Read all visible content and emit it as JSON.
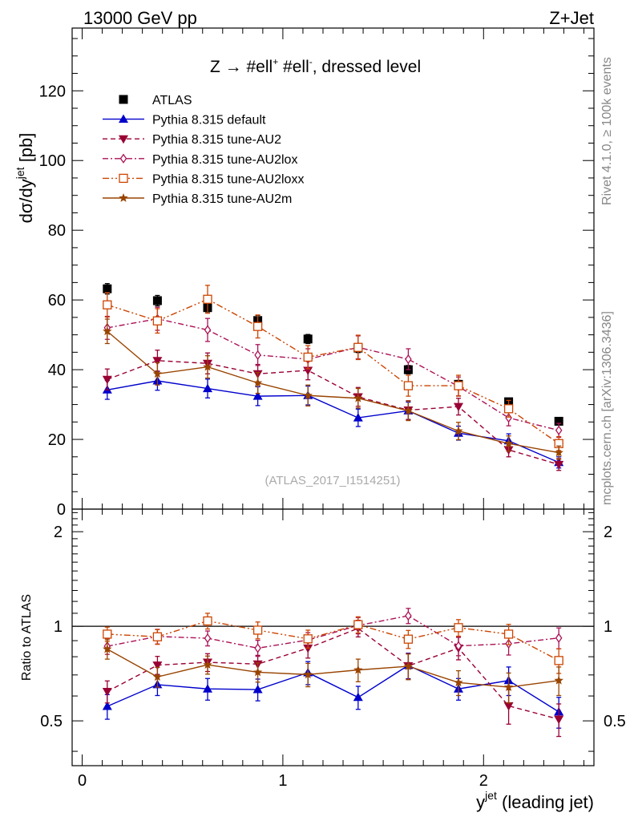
{
  "header": {
    "left": "13000 GeV pp",
    "right": "Z+Jet"
  },
  "side_labels": {
    "rivet": "Rivet 4.1.0, ≥ 100k events",
    "mcplots": "mcplots.cern.ch [arXiv:1306.3436]"
  },
  "colors": {
    "atlas": "#000000",
    "default": "#0000cc",
    "au2": "#990033",
    "au2lox": "#aa1155",
    "au2loxx": "#cc4400",
    "au2m": "#994400"
  },
  "chart_data": [
    {
      "type": "line",
      "title": "Z → #ell⁺ #ell⁻, dressed level",
      "title_parts": {
        "pre": "Z ",
        "arrow": "→",
        "l1": " #ell",
        "sup1": "+",
        "l2": " #ell",
        "sup2": "-",
        "post": ", dressed level"
      },
      "watermark": "(ATLAS_2017_I1514251)",
      "ylabel": "dσ/dy^jet [pb]",
      "ylabel_parts": {
        "base": "dσ/dy",
        "sup": "jet",
        "unit": " [pb]"
      },
      "xlim": [
        -0.05,
        2.55
      ],
      "ylim": [
        0,
        138
      ],
      "yticks": [
        0,
        20,
        40,
        60,
        80,
        100,
        120
      ],
      "ytick_labels": [
        "0",
        "20",
        "40",
        "60",
        "80",
        "100",
        "120"
      ],
      "x": [
        0.125,
        0.375,
        0.625,
        0.875,
        1.125,
        1.375,
        1.625,
        1.875,
        2.125,
        2.375
      ],
      "series": [
        {
          "name": "ATLAS",
          "key": "atlas",
          "marker": "square",
          "line": "none",
          "values": [
            63.2,
            59.8,
            57.8,
            54.1,
            48.8,
            46.2,
            40.0,
            35.8,
            30.8,
            25.2
          ],
          "errors": [
            1.5,
            1.5,
            1.5,
            1.5,
            1.3,
            1.3,
            1.2,
            1.1,
            1.0,
            0.9
          ]
        },
        {
          "name": "Pythia 8.315 default",
          "key": "default",
          "marker": "triangle-up",
          "line": "solid",
          "values": [
            34.2,
            36.8,
            34.6,
            32.4,
            32.6,
            26.2,
            28.2,
            21.8,
            19.6,
            13.4
          ],
          "errors": [
            2.7,
            2.7,
            2.7,
            2.7,
            2.7,
            2.5,
            2.5,
            2.0,
            2.0,
            1.6
          ]
        },
        {
          "name": "Pythia 8.315 tune-AU2",
          "key": "au2",
          "marker": "triangle-down",
          "line": "dashed",
          "values": [
            37.2,
            42.6,
            41.8,
            38.8,
            39.8,
            32.2,
            28.4,
            29.4,
            17.0,
            12.8
          ],
          "errors": [
            3.0,
            3.0,
            3.0,
            2.7,
            2.7,
            2.7,
            2.7,
            2.4,
            2.0,
            1.7
          ]
        },
        {
          "name": "Pythia 8.315 tune-AU2lox",
          "key": "au2lox",
          "marker": "diamond",
          "line": "dashdot",
          "values": [
            52.0,
            54.6,
            51.4,
            44.2,
            43.0,
            46.4,
            43.0,
            35.2,
            26.2,
            22.6
          ],
          "errors": [
            3.3,
            3.3,
            3.3,
            3.0,
            3.0,
            3.3,
            3.0,
            2.7,
            2.3,
            2.0
          ]
        },
        {
          "name": "Pythia 8.315 tune-AU2loxx",
          "key": "au2loxx",
          "marker": "open-square",
          "line": "dashdotdot",
          "values": [
            58.6,
            54.0,
            60.2,
            52.4,
            43.6,
            46.4,
            35.4,
            35.4,
            28.8,
            18.8
          ],
          "errors": [
            3.5,
            3.5,
            4.0,
            3.3,
            3.3,
            3.5,
            3.0,
            3.0,
            2.4,
            2.0
          ]
        },
        {
          "name": "Pythia 8.315 tune-AU2m",
          "key": "au2m",
          "marker": "star",
          "line": "solid",
          "values": [
            51.0,
            38.8,
            40.8,
            36.2,
            32.6,
            31.8,
            28.2,
            22.4,
            18.8,
            16.2
          ],
          "errors": [
            3.5,
            3.2,
            3.2,
            3.0,
            3.0,
            2.8,
            2.8,
            2.5,
            2.2,
            1.9
          ]
        }
      ]
    },
    {
      "type": "line",
      "ylabel": "Ratio to ATLAS",
      "xlabel": "y^jet (leading jet)",
      "xlabel_parts": {
        "base": "y",
        "sup": "jet",
        "post": " (leading jet)"
      },
      "xlim": [
        -0.05,
        2.55
      ],
      "ylim": [
        0.36,
        2.36
      ],
      "yscale": "log",
      "yticks": [
        0.5,
        1,
        2
      ],
      "ytick_labels": [
        "0.5",
        "1",
        "2"
      ],
      "xticks": [
        0,
        1,
        2
      ],
      "xtick_labels": [
        "0",
        "1",
        "2"
      ],
      "x": [
        0.125,
        0.375,
        0.625,
        0.875,
        1.125,
        1.375,
        1.625,
        1.875,
        2.125,
        2.375
      ],
      "reference": 1,
      "series": [
        {
          "name": "Pythia 8.315 default",
          "key": "default",
          "marker": "triangle-up",
          "line": "solid",
          "values": [
            0.556,
            0.652,
            0.632,
            0.629,
            0.712,
            0.594,
            0.751,
            0.632,
            0.672,
            0.534
          ],
          "errors": [
            0.05,
            0.05,
            0.05,
            0.05,
            0.06,
            0.05,
            0.07,
            0.05,
            0.07,
            0.06
          ]
        },
        {
          "name": "Pythia 8.315 tune-AU2",
          "key": "au2",
          "marker": "triangle-down",
          "line": "dashed",
          "values": [
            0.62,
            0.752,
            0.768,
            0.758,
            0.852,
            0.985,
            0.748,
            0.852,
            0.558,
            0.506
          ],
          "errors": [
            0.05,
            0.05,
            0.05,
            0.05,
            0.06,
            0.06,
            0.07,
            0.07,
            0.07,
            0.06
          ]
        },
        {
          "name": "Pythia 8.315 tune-AU2lox",
          "key": "au2lox",
          "marker": "diamond",
          "line": "dashdot",
          "values": [
            0.864,
            0.928,
            0.916,
            0.852,
            0.904,
            1.006,
            1.08,
            0.866,
            0.88,
            0.918
          ],
          "errors": [
            0.05,
            0.05,
            0.05,
            0.05,
            0.05,
            0.06,
            0.06,
            0.06,
            0.07,
            0.07
          ]
        },
        {
          "name": "Pythia 8.315 tune-AU2loxx",
          "key": "au2loxx",
          "marker": "open-square",
          "line": "dashdotdot",
          "values": [
            0.944,
            0.926,
            1.04,
            0.972,
            0.912,
            1.012,
            0.91,
            0.99,
            0.944,
            0.778
          ],
          "errors": [
            0.05,
            0.05,
            0.06,
            0.06,
            0.06,
            0.06,
            0.06,
            0.06,
            0.07,
            0.07
          ]
        },
        {
          "name": "Pythia 8.315 tune-AU2m",
          "key": "au2m",
          "marker": "star",
          "line": "solid",
          "values": [
            0.846,
            0.69,
            0.754,
            0.714,
            0.702,
            0.726,
            0.746,
            0.662,
            0.64,
            0.672
          ],
          "errors": [
            0.06,
            0.05,
            0.05,
            0.05,
            0.06,
            0.06,
            0.07,
            0.06,
            0.07,
            0.07
          ]
        }
      ]
    }
  ]
}
